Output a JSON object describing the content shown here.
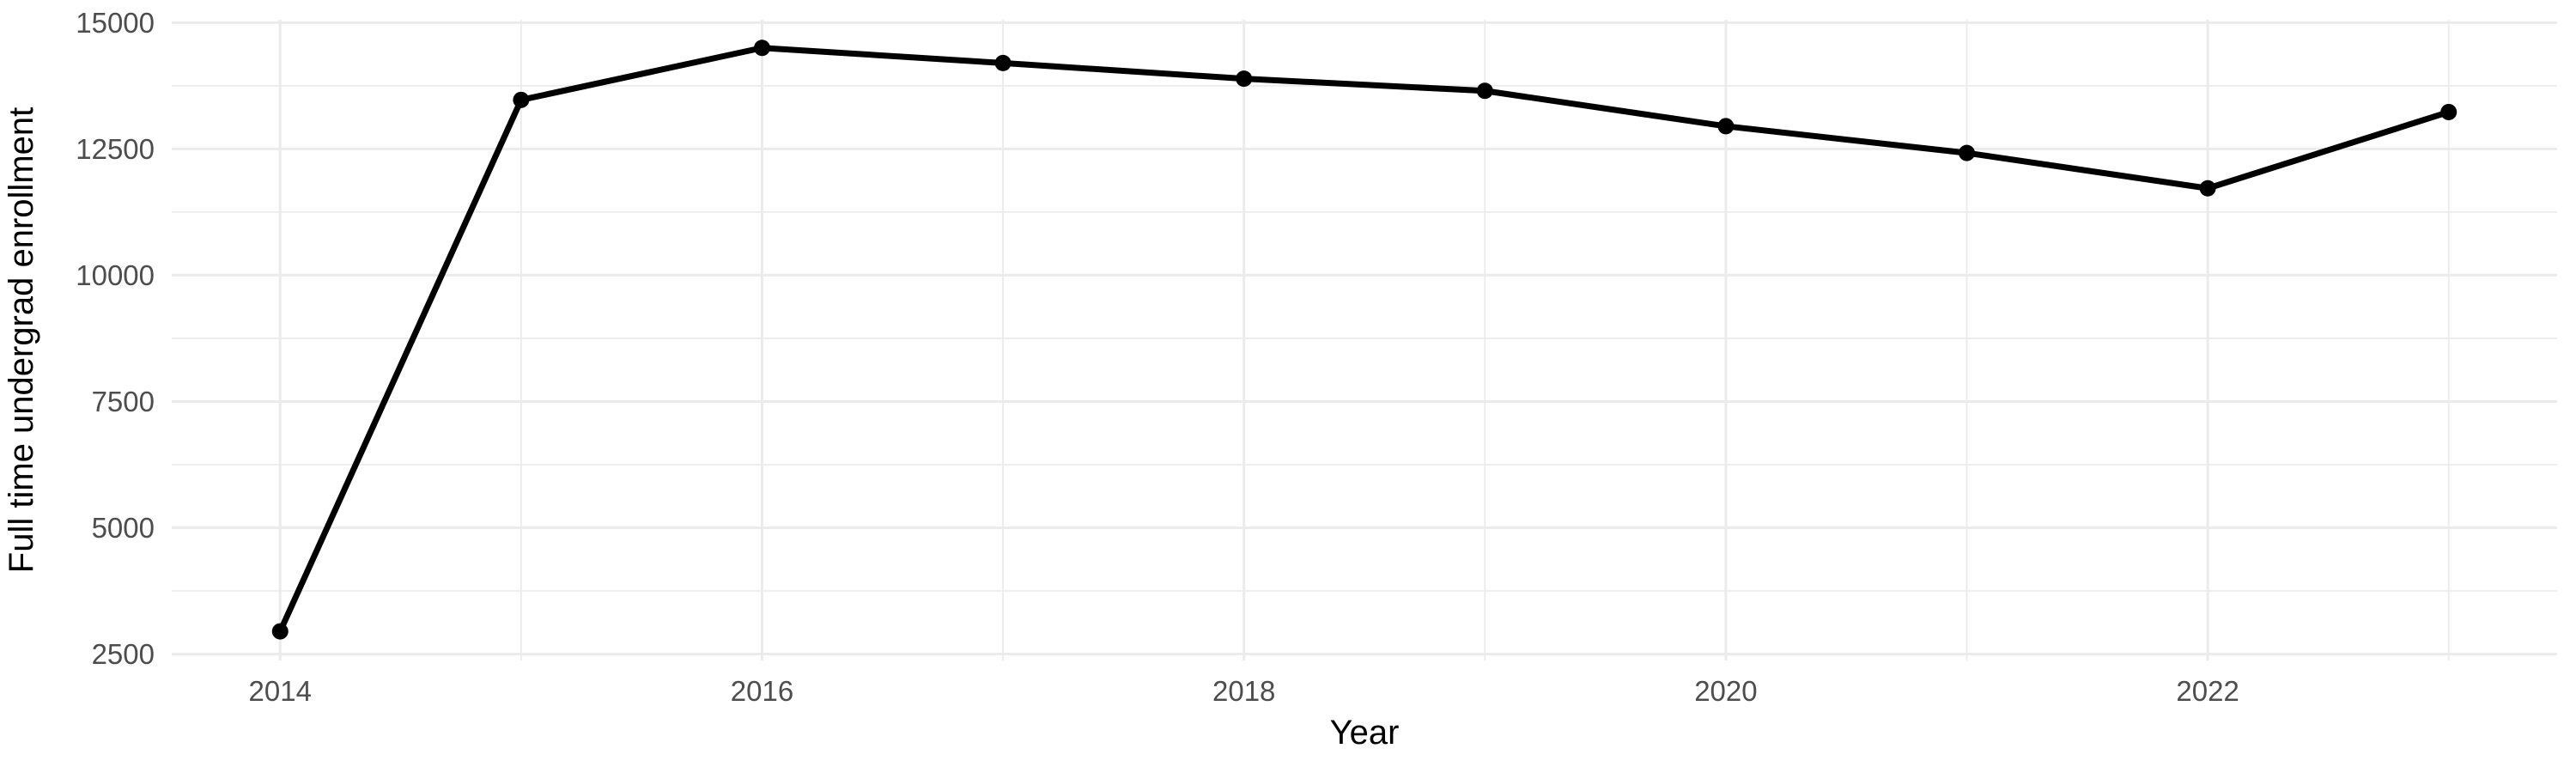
{
  "chart_data": {
    "type": "line",
    "title": "",
    "xlabel": "Year",
    "ylabel": "Full time undergrad enrollment",
    "x": [
      2014,
      2015,
      2016,
      2017,
      2018,
      2019,
      2020,
      2021,
      2022,
      2023
    ],
    "series": [
      {
        "name": "Full time undergrad enrollment",
        "values": [
          2950,
          13470,
          14500,
          14200,
          13890,
          13650,
          12950,
          12420,
          11720,
          13230
        ]
      }
    ],
    "x_domain": [
      2014,
      2023
    ],
    "y_domain": [
      2500,
      15000
    ],
    "x_major_ticks": [
      2014,
      2016,
      2018,
      2020,
      2022
    ],
    "x_minor_gridlines": [
      2015,
      2017,
      2019,
      2021,
      2023
    ],
    "y_major_ticks": [
      2500,
      5000,
      7500,
      10000,
      12500,
      15000
    ],
    "y_minor_gridlines": [
      3750,
      6250,
      8750,
      11250,
      13750
    ],
    "grid": true,
    "legend": false,
    "colors": {
      "line": "#000000",
      "point": "#000000",
      "grid_major": "#EBEBEB",
      "grid_minor": "#EBEBEB",
      "tick_label": "#4D4D4D",
      "axis_title": "#000000",
      "background": "#FFFFFF"
    }
  }
}
